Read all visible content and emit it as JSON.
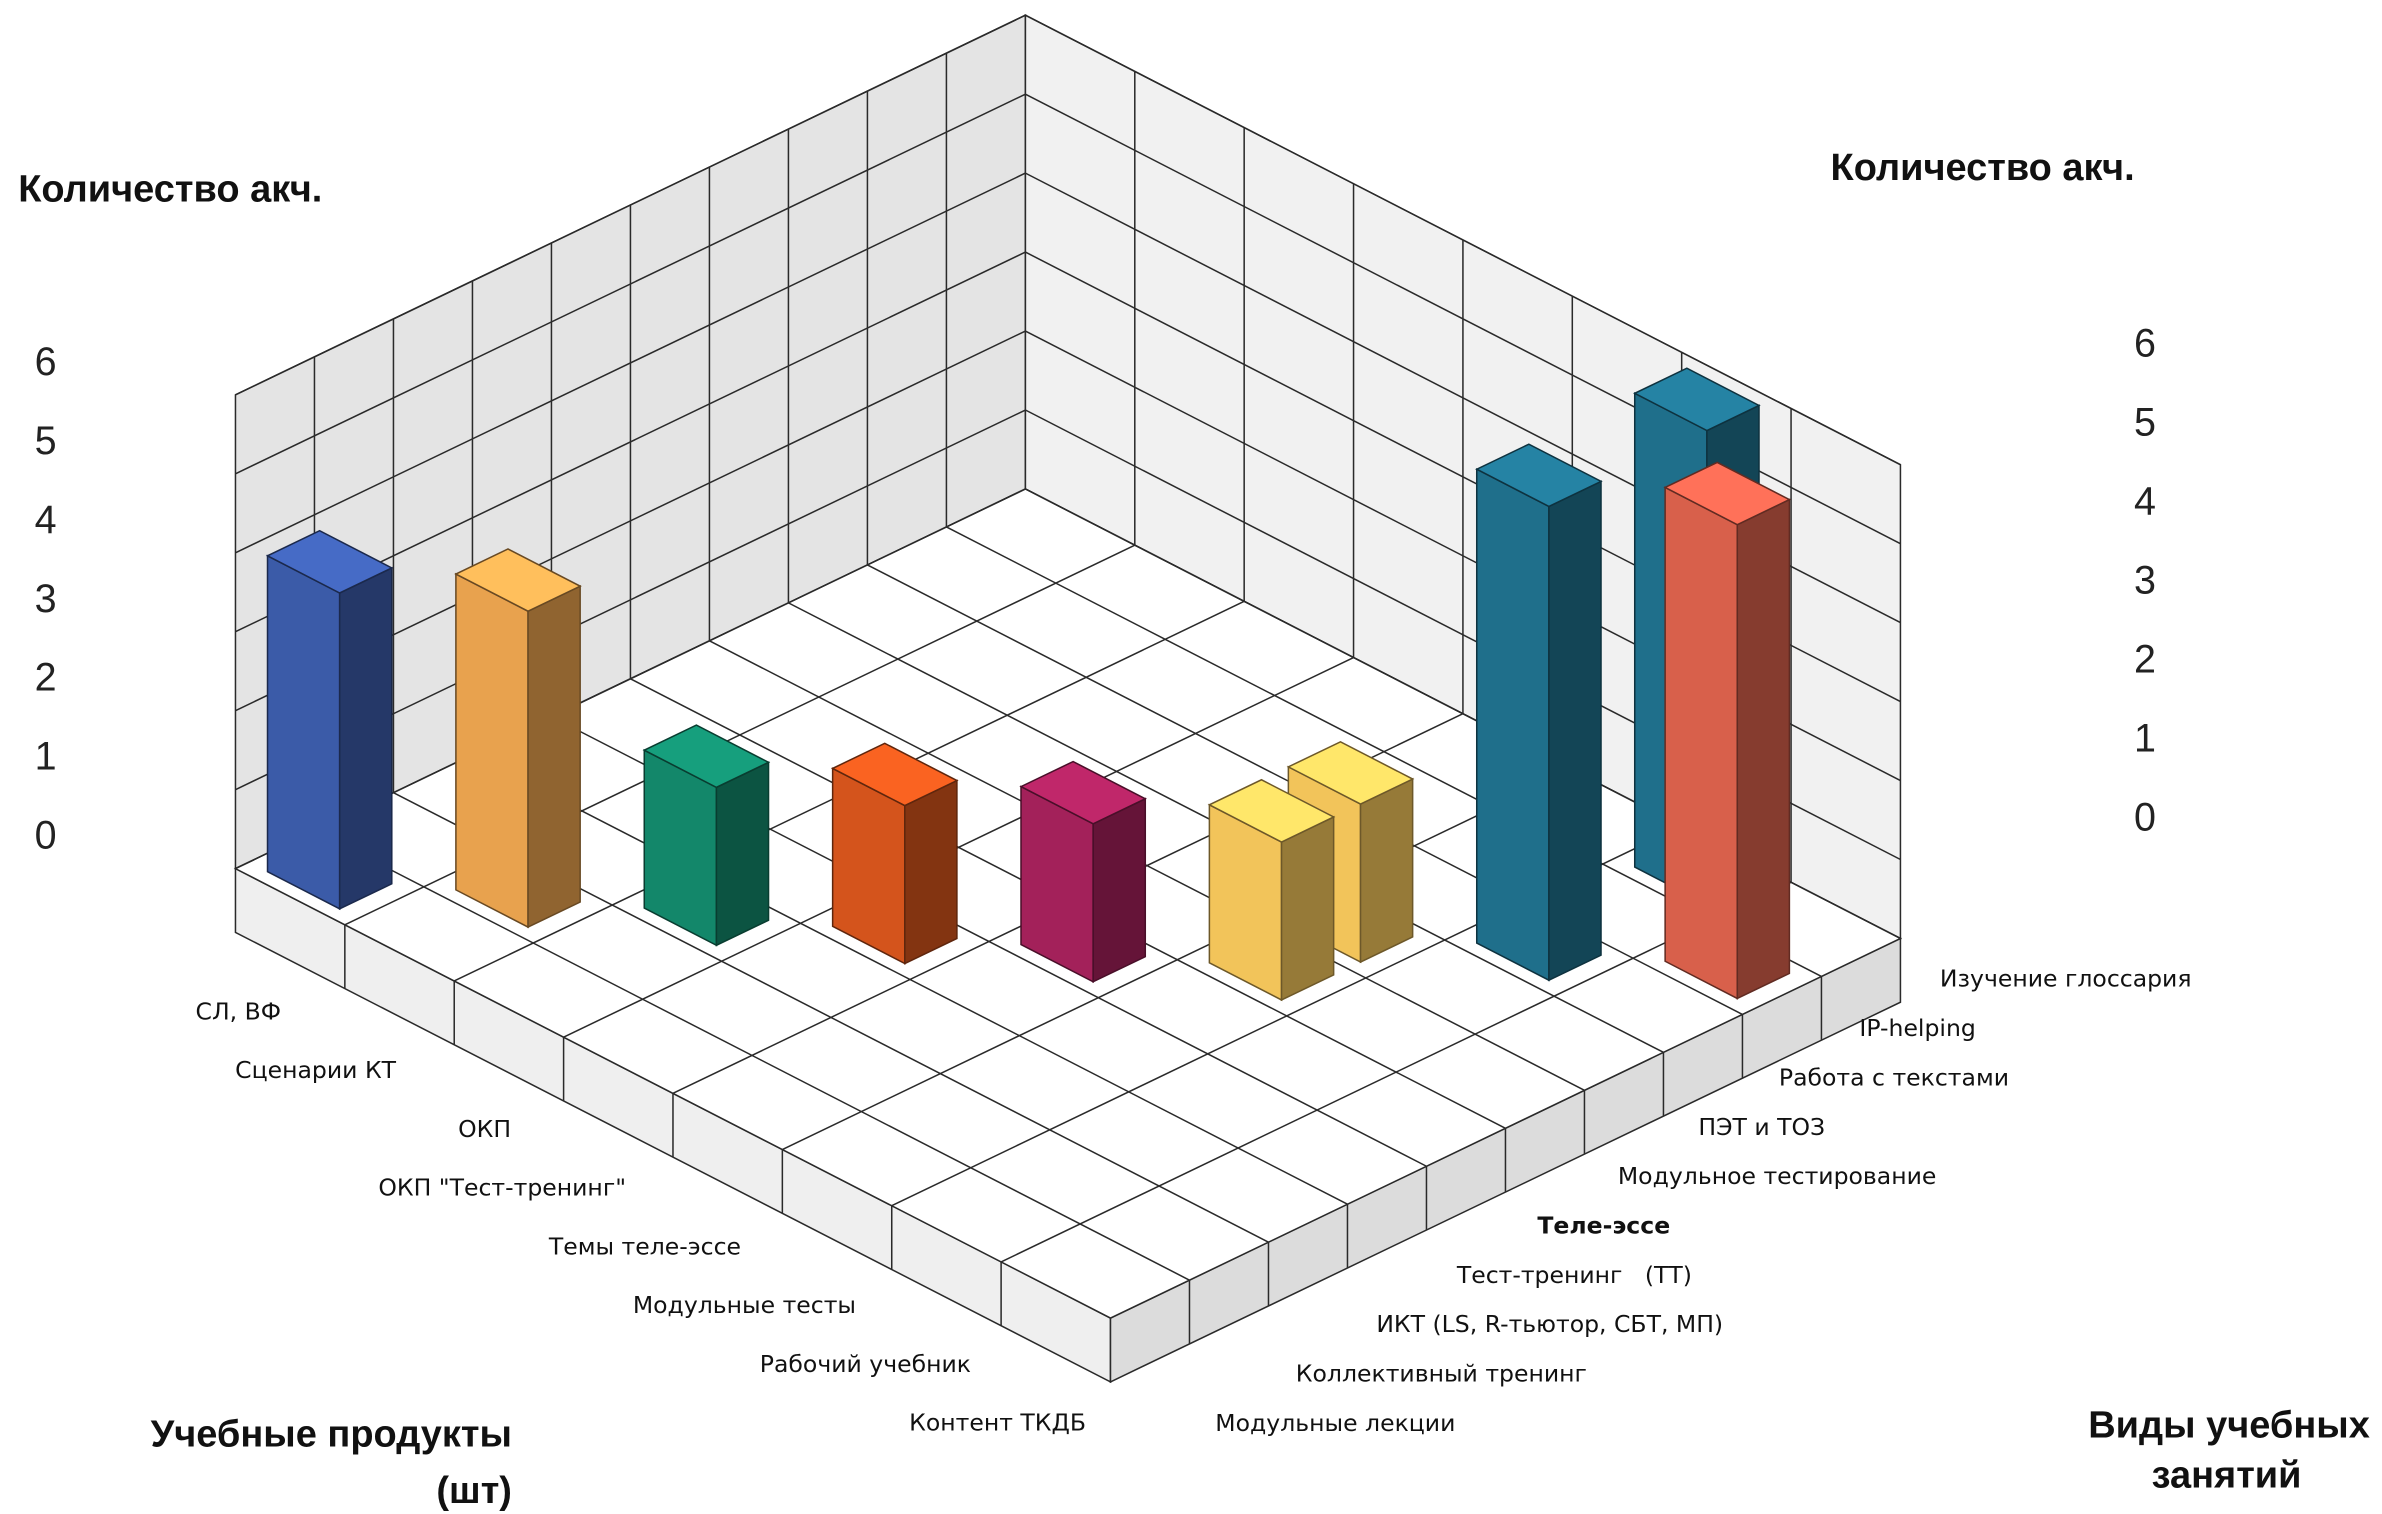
{
  "chart_data": {
    "type": "bar3d",
    "y_title_left": "Количество акч.",
    "y_title_right": "Количество акч.",
    "x_title": [
      "Учебные продукты",
      "(шт)"
    ],
    "z_title": [
      "Виды учебных",
      "занятий"
    ],
    "categories": [
      "СЛ, ВФ",
      "Сценарии КТ",
      "ОКП",
      "ОКП \"Тест-тренинг\"",
      "Темы теле-эссе",
      "Модульные тесты",
      "Рабочий учебник",
      "Контент ТКДБ"
    ],
    "series": [
      {
        "name": "Изучение глоссария",
        "color": "#1f6f8b",
        "values": [
          null,
          null,
          null,
          null,
          null,
          null,
          6,
          null
        ]
      },
      {
        "name": "IP-helping",
        "color": "#d8604b",
        "values": [
          null,
          null,
          null,
          null,
          null,
          null,
          null,
          6
        ]
      },
      {
        "name": "Работа с текстами",
        "color": "#1f6f8b",
        "values": [
          null,
          null,
          null,
          null,
          null,
          null,
          6,
          null
        ]
      },
      {
        "name": "ПЭТ и ТОЗ",
        "color": "#f2c45a",
        "values": [
          null,
          null,
          null,
          null,
          null,
          2,
          null,
          null
        ]
      },
      {
        "name": "Модульное тестирование",
        "color": "#f2c45a",
        "values": [
          null,
          null,
          null,
          null,
          null,
          2,
          null,
          null
        ]
      },
      {
        "name": "Теле-эссе",
        "color": "#a3215a",
        "values": [
          null,
          null,
          null,
          null,
          2,
          null,
          null,
          null
        ],
        "bold_label": true
      },
      {
        "name": "Тест-тренинг   (ТТ)",
        "color": "#d4541c",
        "values": [
          null,
          null,
          null,
          2,
          null,
          null,
          null,
          null
        ]
      },
      {
        "name": "ИКТ (LS, R-тьютор, СБТ, МП)",
        "color": "#13876a",
        "values": [
          null,
          null,
          2,
          null,
          null,
          null,
          null,
          null
        ]
      },
      {
        "name": "Коллективный тренинг",
        "color": "#e8a24e",
        "values": [
          null,
          4,
          null,
          null,
          null,
          null,
          null,
          null
        ]
      },
      {
        "name": "Модульные лекции",
        "color": "#3b5ba8",
        "values": [
          4,
          null,
          null,
          null,
          null,
          null,
          null,
          null
        ]
      }
    ],
    "ylim": [
      0,
      6
    ],
    "yticks": [
      0,
      1,
      2,
      3,
      4,
      5,
      6
    ],
    "grid": true
  }
}
